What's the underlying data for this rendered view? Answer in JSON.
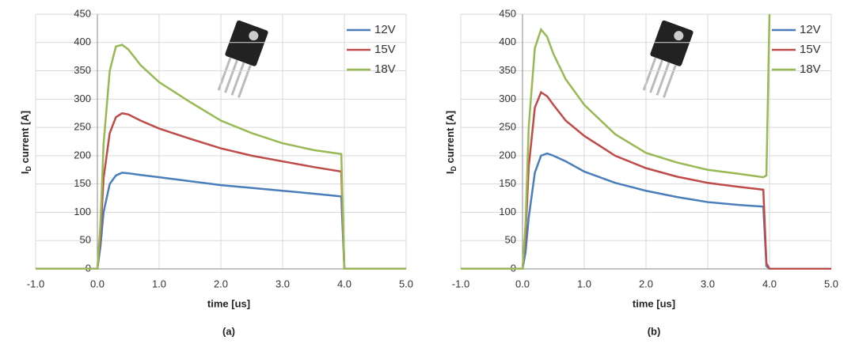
{
  "chart_data": [
    {
      "type": "line",
      "caption": "(a)",
      "xlabel": "time [us]",
      "ylabel": [
        "I",
        "D",
        " current [A]"
      ],
      "x": [
        -1,
        0,
        0.05,
        0.1,
        0.2,
        0.3,
        0.4,
        0.5,
        0.7,
        1.0,
        1.5,
        2.0,
        2.5,
        3.0,
        3.5,
        3.95,
        4.0,
        5.0
      ],
      "series": [
        {
          "name": "12V",
          "color": "#4a7ebb",
          "values": [
            0,
            0,
            40,
            100,
            150,
            165,
            170,
            169,
            166,
            162,
            155,
            148,
            143,
            138,
            133,
            128,
            0,
            0
          ]
        },
        {
          "name": "15V",
          "color": "#be4b48",
          "values": [
            0,
            0,
            60,
            160,
            240,
            268,
            275,
            273,
            262,
            248,
            230,
            213,
            200,
            190,
            180,
            172,
            0,
            0
          ]
        },
        {
          "name": "18V",
          "color": "#98b954",
          "values": [
            0,
            0,
            80,
            220,
            350,
            393,
            396,
            388,
            360,
            330,
            295,
            262,
            240,
            222,
            210,
            203,
            0,
            0
          ]
        }
      ],
      "xlim": [
        -1,
        5
      ],
      "ylim": [
        0,
        450
      ],
      "xticks": [
        {
          "value": -1,
          "label": "-1.0"
        },
        {
          "value": 0,
          "label": "0.0"
        },
        {
          "value": 1,
          "label": "1.0"
        },
        {
          "value": 2,
          "label": "2.0"
        },
        {
          "value": 3,
          "label": "3.0"
        },
        {
          "value": 4,
          "label": "4.0"
        },
        {
          "value": 5,
          "label": "5.0"
        }
      ],
      "yticks": [
        0,
        50,
        100,
        150,
        200,
        250,
        300,
        350,
        400,
        450
      ],
      "grid": true,
      "legend": "upper right"
    },
    {
      "type": "line",
      "caption": "(b)",
      "xlabel": "time [us]",
      "ylabel": [
        "I",
        "D",
        " current [A]"
      ],
      "x": [
        -1,
        0,
        0.05,
        0.1,
        0.2,
        0.3,
        0.4,
        0.5,
        0.7,
        1.0,
        1.5,
        2.0,
        2.5,
        3.0,
        3.5,
        3.9,
        3.95,
        4.0,
        5.0
      ],
      "series": [
        {
          "name": "12V",
          "color": "#4a7ebb",
          "values": [
            0,
            0,
            30,
            90,
            170,
            200,
            204,
            200,
            190,
            172,
            152,
            138,
            127,
            118,
            113,
            110,
            5,
            0,
            0
          ]
        },
        {
          "name": "15V",
          "color": "#be4b48",
          "values": [
            0,
            0,
            60,
            180,
            285,
            312,
            305,
            290,
            262,
            235,
            200,
            178,
            163,
            152,
            145,
            140,
            10,
            0,
            0
          ]
        },
        {
          "name": "18V",
          "color": "#98b954",
          "values": [
            0,
            0,
            80,
            250,
            390,
            423,
            410,
            380,
            335,
            290,
            238,
            205,
            188,
            175,
            168,
            162,
            165,
            450,
            null
          ]
        }
      ],
      "xlim": [
        -1,
        5
      ],
      "ylim": [
        0,
        450
      ],
      "xticks": [
        {
          "value": -1,
          "label": "-1.0"
        },
        {
          "value": 0,
          "label": "0.0"
        },
        {
          "value": 1,
          "label": "1.0"
        },
        {
          "value": 2,
          "label": "2.0"
        },
        {
          "value": 3,
          "label": "3.0"
        },
        {
          "value": 4,
          "label": "4.0"
        },
        {
          "value": 5,
          "label": "5.0"
        }
      ],
      "yticks": [
        0,
        50,
        100,
        150,
        200,
        250,
        300,
        350,
        400,
        450
      ],
      "grid": true,
      "legend": "upper right"
    }
  ]
}
